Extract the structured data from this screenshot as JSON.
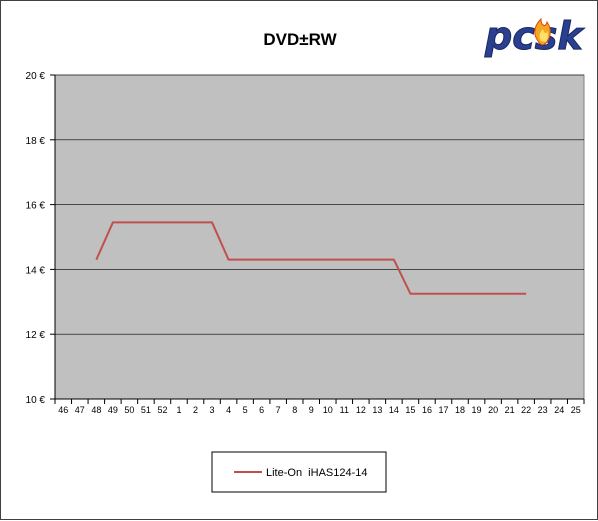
{
  "logo": {
    "text": "pcsk"
  },
  "chart_data": {
    "type": "line",
    "title": "DVD±RW",
    "xlabel": "",
    "ylabel": "",
    "categories": [
      "46",
      "47",
      "48",
      "49",
      "50",
      "51",
      "52",
      "1",
      "2",
      "3",
      "4",
      "5",
      "6",
      "7",
      "8",
      "9",
      "10",
      "11",
      "12",
      "13",
      "14",
      "15",
      "16",
      "17",
      "18",
      "19",
      "20",
      "21",
      "22",
      "23",
      "24",
      "25"
    ],
    "y_ticks": [
      "10 €",
      "12 €",
      "14 €",
      "16 €",
      "18 €",
      "20 €"
    ],
    "ylim": [
      10,
      20
    ],
    "grid": true,
    "legend_position": "bottom",
    "series": [
      {
        "name": "Lite-On  iHAS124-14",
        "color": "#c0504d",
        "values": [
          null,
          null,
          14.3,
          15.45,
          15.45,
          15.45,
          15.45,
          15.45,
          15.45,
          15.45,
          14.3,
          14.3,
          14.3,
          14.3,
          14.3,
          14.3,
          14.3,
          14.3,
          14.3,
          14.3,
          14.3,
          13.25,
          13.25,
          13.25,
          13.25,
          13.25,
          13.25,
          13.25,
          13.25,
          null,
          null,
          null
        ]
      }
    ],
    "plot_background": "#c0c0c0"
  }
}
